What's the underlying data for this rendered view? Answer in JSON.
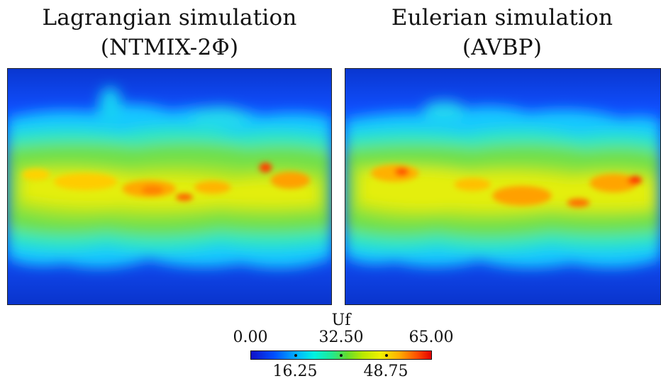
{
  "left_panel": {
    "title_line1": "Lagrangian simulation",
    "title_line2": "(NTMIX-2Φ)"
  },
  "right_panel": {
    "title_line1": "Eulerian simulation",
    "title_line2": "(AVBP)"
  },
  "colorbar": {
    "variable": "Uf",
    "min_label": "0.00",
    "mid_label": "32.50",
    "max_label": "65.00",
    "low_label": "16.25",
    "high_label": "48.75",
    "colors": [
      "#1010c8",
      "#0050ff",
      "#00b8ff",
      "#00f2e0",
      "#22e890",
      "#60dc30",
      "#b8e800",
      "#f0f000",
      "#ffb000",
      "#ff5000",
      "#e40000"
    ]
  }
}
